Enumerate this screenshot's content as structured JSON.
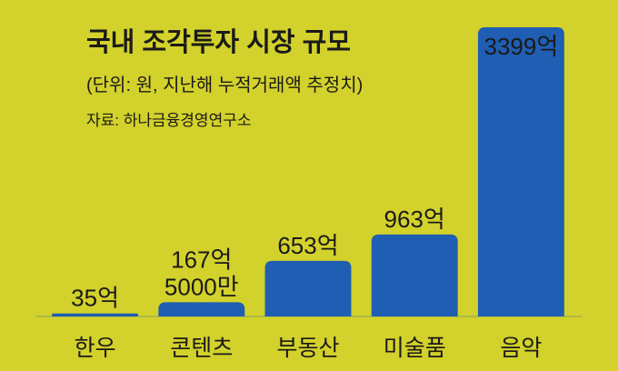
{
  "chart_data": {
    "type": "bar",
    "title": "국내 조각투자 시장 규모",
    "subtitle": "(단위: 원, 지난해 누적거래액 추정치)",
    "source": "자료: 하나금융경영연구소",
    "categories": [
      "한우",
      "콘텐츠",
      "부동산",
      "미술품",
      "음악"
    ],
    "values": [
      35,
      167.5,
      653,
      963,
      3399
    ],
    "value_labels": [
      "35억",
      "167억\n5000만",
      "653억",
      "963억",
      "3399억"
    ],
    "color": "#1f5eb3"
  }
}
